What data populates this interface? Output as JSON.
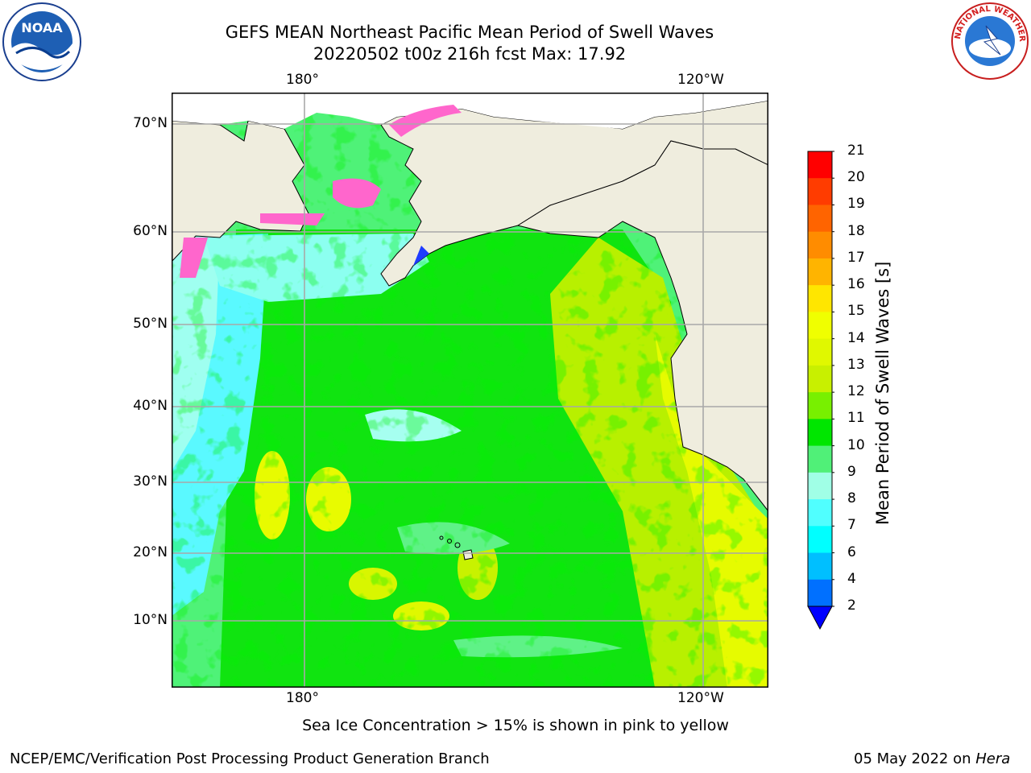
{
  "title": {
    "line1": "GEFS MEAN Northeast Pacific Mean Period of Swell Waves",
    "line2": "20220502 t00z 216h fcst   Max: 17.92"
  },
  "axes": {
    "lon_labels": [
      "180°",
      "120°W"
    ],
    "lat_labels": [
      "70°N",
      "60°N",
      "50°N",
      "40°N",
      "30°N",
      "20°N",
      "10°N"
    ]
  },
  "colorbar": {
    "label": "Mean Period of Swell Waves [s]",
    "ticks": [
      "21",
      "20",
      "19",
      "18",
      "17",
      "16",
      "15",
      "14",
      "13",
      "12",
      "11",
      "10",
      "9",
      "8",
      "7",
      "6",
      "4",
      "2"
    ],
    "colors": [
      "#ff0000",
      "#ff3c00",
      "#ff6400",
      "#ff8c00",
      "#ffb400",
      "#ffe600",
      "#f0ff00",
      "#e0f800",
      "#c8f000",
      "#78f000",
      "#00e600",
      "#50f078",
      "#a0ffe6",
      "#50ffff",
      "#00ffff",
      "#00bfff",
      "#0070ff",
      "#0000ff"
    ],
    "under_color": "#0000ff"
  },
  "logos": {
    "noaa": "NOAA",
    "nws": "NATIONAL WEATHER SERVICE"
  },
  "map": {
    "ocean_colors": {
      "cyan": "#50ffff",
      "lightcyan": "#a0ffff",
      "green": "#00e600",
      "lightgreen": "#50f078",
      "yellowgreen": "#b4f000",
      "yellow": "#f0ff00",
      "land": "#efedde"
    }
  },
  "footer": {
    "note": "Sea Ice Concentration > 15% is shown in pink to yellow",
    "org": "NCEP/EMC/Verification Post Processing Product Generation Branch",
    "date": "05 May 2022 on ",
    "machine": "Hera"
  }
}
